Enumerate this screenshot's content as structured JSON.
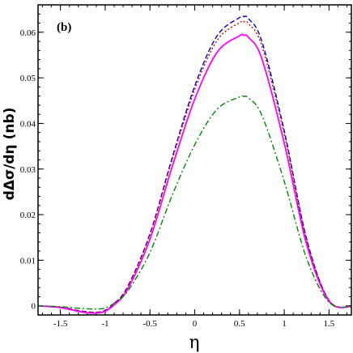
{
  "chart_data": {
    "type": "line",
    "panel_label": "(b)",
    "xlabel": "η",
    "ylabel": "dΔσ/dη (nb)",
    "xlim": [
      -1.75,
      1.75
    ],
    "ylim": [
      -0.002,
      0.066
    ],
    "x_ticks": [
      -1.5,
      -1,
      -0.5,
      0,
      0.5,
      1,
      1.5
    ],
    "x_tick_labels": [
      "-1.5",
      "-1",
      "-0.5",
      "0",
      "0.5",
      "1",
      "1.5"
    ],
    "y_ticks": [
      0,
      0.01,
      0.02,
      0.03,
      0.04,
      0.05,
      0.06
    ],
    "y_tick_labels": [
      "0",
      "0.01",
      "0.02",
      "0.03",
      "0.04",
      "0.05",
      "0.06"
    ],
    "grid": false,
    "x": [
      -1.75,
      -1.5,
      -1.25,
      -1.1,
      -1.0,
      -0.9,
      -0.75,
      -0.5,
      -0.25,
      0,
      0.25,
      0.5,
      0.55,
      0.6,
      0.75,
      1.0,
      1.25,
      1.5,
      1.75
    ],
    "series": [
      {
        "color": "#0000cc",
        "style": "dashed",
        "values": [
          0.0,
          -0.0003,
          -0.0012,
          -0.0014,
          -0.001,
          0.0005,
          0.0042,
          0.0158,
          0.0326,
          0.0482,
          0.0592,
          0.0632,
          0.0634,
          0.063,
          0.058,
          0.0384,
          0.0147,
          0.0012,
          -0.0002
        ]
      },
      {
        "color": "#cc0000",
        "style": "dotted",
        "values": [
          0.0,
          -0.0003,
          -0.0012,
          -0.0014,
          -0.001,
          0.0005,
          0.0041,
          0.0156,
          0.0322,
          0.0474,
          0.0582,
          0.0621,
          0.0623,
          0.0619,
          0.057,
          0.0377,
          0.0144,
          0.0012,
          -0.0002
        ]
      },
      {
        "color": "#ff00ff",
        "style": "solid",
        "values": [
          0.0,
          -0.0004,
          -0.0014,
          -0.0016,
          -0.0012,
          0.0002,
          0.0036,
          0.0146,
          0.0306,
          0.0453,
          0.0556,
          0.0592,
          0.0593,
          0.0589,
          0.0542,
          0.0357,
          0.0135,
          0.001,
          -0.0002
        ]
      },
      {
        "color": "#008800",
        "style": "dashdot",
        "values": [
          0.0,
          -0.0002,
          -0.0006,
          -0.0007,
          -0.0005,
          0.0006,
          0.0032,
          0.0117,
          0.0243,
          0.0353,
          0.0431,
          0.0458,
          0.0459,
          0.0456,
          0.0418,
          0.0273,
          0.0104,
          0.0008,
          -0.0002
        ]
      }
    ]
  }
}
